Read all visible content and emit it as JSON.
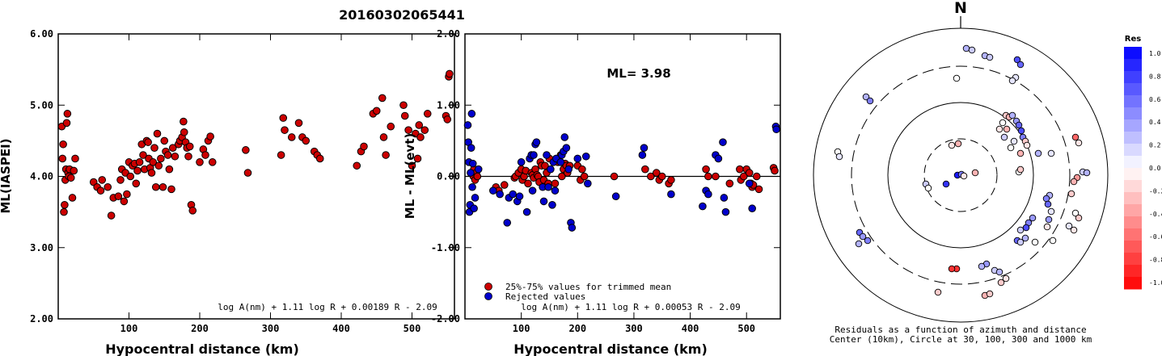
{
  "title": "20160302065441",
  "colors": {
    "red": "#cc0000",
    "blue": "#0000cc",
    "stroke": "#000000"
  },
  "panels": [
    {
      "id": "ml-vs-distance",
      "ylabel": "ML(IASPEI)",
      "xlabel": "Hypocentral distance (km)",
      "formula": "log A(nm) + 1.11 log R + 0.00189 R - 2.09",
      "yticks": [
        "2.00",
        "3.00",
        "4.00",
        "5.00",
        "6.00"
      ],
      "xticks": [
        "100",
        "200",
        "300",
        "400",
        "500"
      ]
    },
    {
      "id": "residual-vs-distance",
      "ylabel": "ML - ML(evt)",
      "xlabel": "Hypocentral distance (km)",
      "formula": "log A(nm) + 1.11 log R + 0.00053 R - 2.09",
      "annotation": "ML= 3.98",
      "legend": [
        "25%-75% values for trimmed mean",
        "Rejected values"
      ],
      "yticks": [
        "-2.00",
        "-1.00",
        "0.00",
        "1.00",
        "2.00"
      ],
      "xticks": [
        "100",
        "200",
        "300",
        "400",
        "500"
      ]
    },
    {
      "id": "azimuth-plot",
      "north": "N",
      "caption1": "Residuals as a function of azimuth and distance",
      "caption2": "Center (10km), Circle at 30, 100, 300 and 1000 km"
    }
  ],
  "colorbar": {
    "title": "Res",
    "labels": [
      "1.0",
      "0.8",
      "0.6",
      "0.4",
      "0.2",
      "0.0",
      "-0.2",
      "-0.4",
      "-0.6",
      "-0.8",
      "-1.0"
    ]
  },
  "chart_data": [
    {
      "type": "scatter",
      "title": "20160302065441",
      "xlabel": "Hypocentral distance (km)",
      "ylabel": "ML(IASPEI)",
      "xlim": [
        0,
        560
      ],
      "ylim": [
        2.0,
        6.0
      ],
      "series": [
        {
          "points": [
            [
              5,
              4.7
            ],
            [
              6,
              4.25
            ],
            [
              7,
              4.45
            ],
            [
              8,
              3.5
            ],
            [
              9,
              3.6
            ],
            [
              10,
              3.95
            ],
            [
              11,
              4.1
            ],
            [
              12,
              4.75
            ],
            [
              13,
              4.88
            ],
            [
              14,
              4.05
            ],
            [
              15,
              4.0
            ],
            [
              16,
              4.1
            ],
            [
              18,
              3.98
            ],
            [
              20,
              3.7
            ],
            [
              22,
              4.08
            ],
            [
              24,
              4.25
            ],
            [
              50,
              3.92
            ],
            [
              55,
              3.85
            ],
            [
              60,
              3.8
            ],
            [
              62,
              3.95
            ],
            [
              70,
              3.85
            ],
            [
              75,
              3.45
            ],
            [
              78,
              3.7
            ],
            [
              85,
              3.72
            ],
            [
              88,
              3.95
            ],
            [
              90,
              4.1
            ],
            [
              93,
              3.65
            ],
            [
              95,
              4.05
            ],
            [
              97,
              3.75
            ],
            [
              100,
              4.2
            ],
            [
              102,
              4.0
            ],
            [
              105,
              4.15
            ],
            [
              108,
              4.18
            ],
            [
              110,
              3.9
            ],
            [
              112,
              4.08
            ],
            [
              115,
              4.2
            ],
            [
              118,
              4.45
            ],
            [
              120,
              4.3
            ],
            [
              122,
              4.1
            ],
            [
              125,
              4.5
            ],
            [
              127,
              4.48
            ],
            [
              128,
              4.25
            ],
            [
              130,
              4.12
            ],
            [
              132,
              4.05
            ],
            [
              134,
              4.2
            ],
            [
              136,
              4.4
            ],
            [
              138,
              3.85
            ],
            [
              140,
              4.6
            ],
            [
              142,
              4.15
            ],
            [
              145,
              4.25
            ],
            [
              148,
              3.85
            ],
            [
              150,
              4.5
            ],
            [
              152,
              4.35
            ],
            [
              155,
              4.3
            ],
            [
              157,
              4.1
            ],
            [
              160,
              3.82
            ],
            [
              162,
              4.4
            ],
            [
              165,
              4.28
            ],
            [
              170,
              4.45
            ],
            [
              172,
              4.5
            ],
            [
              175,
              4.55
            ],
            [
              177,
              4.77
            ],
            [
              178,
              4.62
            ],
            [
              180,
              4.48
            ],
            [
              182,
              4.4
            ],
            [
              184,
              4.28
            ],
            [
              186,
              4.42
            ],
            [
              188,
              3.6
            ],
            [
              190,
              3.52
            ],
            [
              200,
              4.2
            ],
            [
              205,
              4.38
            ],
            [
              208,
              4.3
            ],
            [
              212,
              4.5
            ],
            [
              215,
              4.56
            ],
            [
              218,
              4.2
            ],
            [
              265,
              4.37
            ],
            [
              268,
              4.05
            ],
            [
              315,
              4.3
            ],
            [
              318,
              4.82
            ],
            [
              320,
              4.65
            ],
            [
              330,
              4.55
            ],
            [
              340,
              4.75
            ],
            [
              345,
              4.55
            ],
            [
              350,
              4.5
            ],
            [
              362,
              4.35
            ],
            [
              366,
              4.3
            ],
            [
              370,
              4.25
            ],
            [
              422,
              4.15
            ],
            [
              428,
              4.35
            ],
            [
              432,
              4.42
            ],
            [
              445,
              4.88
            ],
            [
              450,
              4.92
            ],
            [
              458,
              5.1
            ],
            [
              460,
              4.55
            ],
            [
              463,
              4.3
            ],
            [
              470,
              4.7
            ],
            [
              488,
              5.0
            ],
            [
              490,
              4.85
            ],
            [
              495,
              4.65
            ],
            [
              500,
              4.15
            ],
            [
              505,
              4.6
            ],
            [
              508,
              4.25
            ],
            [
              510,
              4.72
            ],
            [
              512,
              4.55
            ],
            [
              518,
              4.65
            ],
            [
              522,
              4.88
            ],
            [
              548,
              4.85
            ],
            [
              550,
              4.8
            ],
            [
              552,
              5.4
            ],
            [
              553,
              5.44
            ]
          ]
        }
      ]
    },
    {
      "type": "scatter",
      "xlabel": "Hypocentral distance (km)",
      "ylabel": "ML - ML(evt)",
      "xlim": [
        0,
        560
      ],
      "ylim": [
        -2.0,
        2.0
      ],
      "annotation": "ML= 3.98",
      "reference_line": 0.0,
      "series": [
        {
          "name": "25%-75% values for trimmed mean",
          "color": "red",
          "points": [
            [
              15,
              0.0
            ],
            [
              16,
              0.1
            ],
            [
              18,
              -0.05
            ],
            [
              20,
              0.05
            ],
            [
              22,
              0.0
            ],
            [
              55,
              -0.15
            ],
            [
              60,
              -0.2
            ],
            [
              70,
              -0.12
            ],
            [
              88,
              -0.02
            ],
            [
              90,
              0.0
            ],
            [
              95,
              0.05
            ],
            [
              100,
              0.1
            ],
            [
              102,
              -0.05
            ],
            [
              105,
              0.0
            ],
            [
              108,
              0.08
            ],
            [
              112,
              -0.1
            ],
            [
              118,
              0.05
            ],
            [
              120,
              0.02
            ],
            [
              122,
              -0.02
            ],
            [
              125,
              0.1
            ],
            [
              128,
              0.02
            ],
            [
              130,
              0.0
            ],
            [
              132,
              -0.08
            ],
            [
              134,
              0.2
            ],
            [
              136,
              0.15
            ],
            [
              140,
              -0.05
            ],
            [
              142,
              0.15
            ],
            [
              145,
              0.05
            ],
            [
              148,
              -0.1
            ],
            [
              150,
              0.25
            ],
            [
              160,
              -0.1
            ],
            [
              165,
              0.2
            ],
            [
              170,
              0.3
            ],
            [
              172,
              0.0
            ],
            [
              175,
              0.1
            ],
            [
              178,
              0.18
            ],
            [
              180,
              0.15
            ],
            [
              182,
              0.05
            ],
            [
              186,
              0.15
            ],
            [
              200,
              0.15
            ],
            [
              205,
              -0.05
            ],
            [
              208,
              0.1
            ],
            [
              212,
              0.0
            ],
            [
              265,
              0.0
            ],
            [
              320,
              0.1
            ],
            [
              330,
              0.0
            ],
            [
              340,
              0.05
            ],
            [
              345,
              -0.05
            ],
            [
              350,
              0.0
            ],
            [
              362,
              -0.1
            ],
            [
              366,
              -0.05
            ],
            [
              428,
              0.1
            ],
            [
              432,
              0.0
            ],
            [
              445,
              0.0
            ],
            [
              470,
              -0.1
            ],
            [
              488,
              0.1
            ],
            [
              490,
              -0.05
            ],
            [
              495,
              0.0
            ],
            [
              500,
              0.1
            ],
            [
              505,
              0.05
            ],
            [
              508,
              -0.1
            ],
            [
              510,
              -0.15
            ],
            [
              512,
              -0.12
            ],
            [
              518,
              0.0
            ],
            [
              522,
              -0.18
            ],
            [
              548,
              0.12
            ],
            [
              550,
              0.08
            ]
          ]
        },
        {
          "name": "Rejected values",
          "color": "blue",
          "points": [
            [
              5,
              0.72
            ],
            [
              6,
              0.48
            ],
            [
              7,
              0.2
            ],
            [
              8,
              -0.5
            ],
            [
              9,
              -0.4
            ],
            [
              10,
              0.05
            ],
            [
              11,
              0.4
            ],
            [
              12,
              0.88
            ],
            [
              13,
              -0.15
            ],
            [
              14,
              0.18
            ],
            [
              16,
              -0.45
            ],
            [
              18,
              -0.3
            ],
            [
              24,
              0.1
            ],
            [
              50,
              -0.2
            ],
            [
              62,
              -0.25
            ],
            [
              75,
              -0.65
            ],
            [
              78,
              -0.3
            ],
            [
              85,
              -0.25
            ],
            [
              93,
              -0.35
            ],
            [
              97,
              -0.28
            ],
            [
              100,
              0.2
            ],
            [
              110,
              -0.5
            ],
            [
              115,
              0.25
            ],
            [
              118,
              0.3
            ],
            [
              120,
              -0.2
            ],
            [
              122,
              0.3
            ],
            [
              125,
              0.45
            ],
            [
              127,
              0.48
            ],
            [
              138,
              -0.15
            ],
            [
              140,
              -0.35
            ],
            [
              145,
              0.3
            ],
            [
              148,
              -0.15
            ],
            [
              152,
              0.1
            ],
            [
              155,
              -0.4
            ],
            [
              157,
              0.2
            ],
            [
              160,
              -0.2
            ],
            [
              162,
              0.25
            ],
            [
              170,
              0.2
            ],
            [
              172,
              0.3
            ],
            [
              175,
              0.35
            ],
            [
              177,
              0.55
            ],
            [
              180,
              0.4
            ],
            [
              184,
              0.1
            ],
            [
              188,
              -0.65
            ],
            [
              190,
              -0.72
            ],
            [
              200,
              0.25
            ],
            [
              215,
              0.28
            ],
            [
              218,
              -0.1
            ],
            [
              268,
              -0.28
            ],
            [
              315,
              0.3
            ],
            [
              318,
              0.4
            ],
            [
              366,
              -0.25
            ],
            [
              422,
              -0.42
            ],
            [
              428,
              -0.2
            ],
            [
              432,
              -0.25
            ],
            [
              445,
              0.3
            ],
            [
              450,
              0.25
            ],
            [
              458,
              0.48
            ],
            [
              460,
              -0.3
            ],
            [
              463,
              -0.5
            ],
            [
              505,
              -0.1
            ],
            [
              510,
              -0.45
            ],
            [
              552,
              0.7
            ],
            [
              553,
              0.66
            ]
          ]
        }
      ]
    }
  ]
}
